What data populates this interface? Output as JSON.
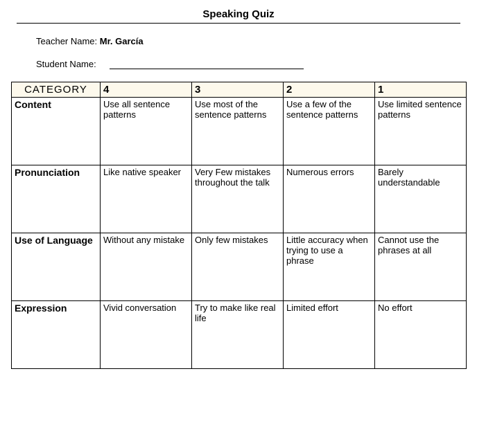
{
  "title": "Speaking Quiz",
  "teacher_label": "Teacher Name: ",
  "teacher_name": "Mr. García",
  "student_label": "Student Name:",
  "header": {
    "category": "CATEGORY",
    "c4": "4",
    "c3": "3",
    "c2": "2",
    "c1": "1"
  },
  "rows": [
    {
      "label": "Content",
      "c4": "Use all sentence patterns",
      "c3": "Use most of the sentence patterns",
      "c2": "Use a few of the sentence patterns",
      "c1": "Use limited sentence patterns"
    },
    {
      "label": "Pronunciation",
      "c4": "Like native speaker",
      "c3": "Very Few mistakes throughout the talk",
      "c2": "Numerous errors",
      "c1": "Barely understandable"
    },
    {
      "label": "Use of Language",
      "c4": "Without any mistake",
      "c3": "Only few mistakes",
      "c2": "Little accuracy when trying to use a phrase",
      "c1": "Cannot use the phrases at all"
    },
    {
      "label": "Expression",
      "c4": "Vivid conversation",
      "c3": "Try to make like real life",
      "c2": "Limited effort",
      "c1": "No effort"
    }
  ],
  "style": {
    "header_bg": "#fdf9ec",
    "border_color": "#000000",
    "page_bg": "#ffffff",
    "font_family": "Arial",
    "title_fontsize_pt": 11,
    "body_fontsize_pt": 10
  }
}
